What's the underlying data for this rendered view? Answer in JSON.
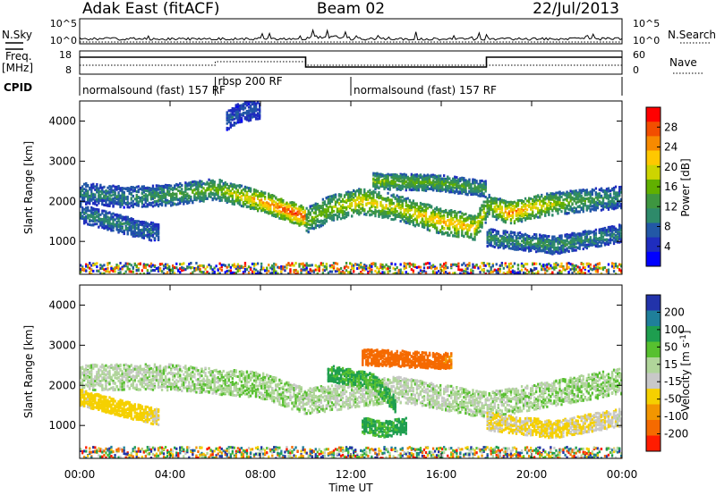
{
  "header": {
    "station": "Adak East (fitACF)",
    "beam": "Beam 02",
    "date": "22/Jul/2013"
  },
  "strip_labels": {
    "nsky": "N.Sky",
    "nsearch": "N.Search",
    "freq_line1": "Freq.",
    "freq_line2": "[MHz]",
    "nave": "Nave",
    "cpid": "CPID",
    "nsky_ticks": [
      "10^5",
      "10^0"
    ],
    "freq_ticks": [
      "18",
      "8"
    ],
    "nave_ticks": [
      "60",
      "0"
    ]
  },
  "cpid_segments": [
    {
      "label": "normalsound (fast) 157 RF",
      "start_h": 0.0,
      "end_h": 6.0
    },
    {
      "label": "rbsp 200 RF",
      "start_h": 6.0,
      "end_h": 12.0
    },
    {
      "label": "normalsound (fast) 157 RF",
      "start_h": 12.0,
      "end_h": 24.0
    }
  ],
  "freq_steps": [
    {
      "start_h": 0.0,
      "end_h": 10.0,
      "level": "high"
    },
    {
      "start_h": 10.0,
      "end_h": 18.0,
      "level": "low"
    },
    {
      "start_h": 18.0,
      "end_h": 24.0,
      "level": "high"
    }
  ],
  "nave_steps": [
    {
      "start_h": 0.0,
      "end_h": 6.0,
      "level": "low"
    },
    {
      "start_h": 6.0,
      "end_h": 10.0,
      "level": "mid"
    },
    {
      "start_h": 10.0,
      "end_h": 24.0,
      "level": "low"
    }
  ],
  "power_colorbar": {
    "label": "Power [dB]",
    "ticks": [
      "28",
      "24",
      "20",
      "16",
      "12",
      "8",
      "4"
    ],
    "colors": [
      "#ff0000",
      "#f24e00",
      "#f78a00",
      "#ffc800",
      "#cdd400",
      "#61b000",
      "#3e9640",
      "#2e8a6a",
      "#2258a6",
      "#1f2dbe",
      "#0000ff"
    ]
  },
  "velocity_colorbar": {
    "label": "Velocity [m s^-1]",
    "ticks": [
      "200",
      "100",
      "50",
      "15",
      "-15",
      "-50",
      "-100",
      "-200"
    ],
    "colors": [
      "#2233aa",
      "#1f7f9a",
      "#1e9e4f",
      "#57c02f",
      "#b0d59a",
      "#c8c8c8",
      "#f5d000",
      "#f29600",
      "#f56a00",
      "#ff1c00"
    ]
  },
  "chart_data": {
    "type": "heatmap",
    "title": "Adak East (fitACF)  Beam 02  22/Jul/2013",
    "xlabel": "Time UT",
    "x_ticks": [
      "00:00",
      "04:00",
      "08:00",
      "12:00",
      "16:00",
      "20:00",
      "00:00"
    ],
    "xlim_hours": [
      0,
      24
    ],
    "panels": [
      {
        "name": "power",
        "ylabel": "Slant Range [km]",
        "ylim": [
          180,
          4500
        ],
        "y_ticks": [
          1000,
          2000,
          3000,
          4000
        ],
        "bands": [
          {
            "t": [
              0.0,
              2.0,
              4.0,
              6.0,
              8.0,
              9.5,
              10.0
            ],
            "range": [
              2200,
              2100,
              2150,
              2300,
              2000,
              1700,
              1600
            ],
            "width": 260,
            "intensity": [
              0.3,
              0.3,
              0.4,
              0.5,
              0.8,
              0.95,
              0.9
            ]
          },
          {
            "t": [
              10.0,
              11.0,
              12.5,
              14.0,
              16.0,
              17.5,
              18.0
            ],
            "range": [
              1500,
              1800,
              2000,
              1850,
              1500,
              1350,
              1800
            ],
            "width": 320,
            "intensity": [
              0.5,
              0.55,
              0.7,
              0.6,
              0.75,
              0.7,
              0.6
            ]
          },
          {
            "t": [
              18.0,
              19.0,
              20.5,
              22.0,
              24.0
            ],
            "range": [
              1900,
              1700,
              1900,
              2000,
              2100
            ],
            "width": 280,
            "intensity": [
              0.5,
              0.85,
              0.65,
              0.45,
              0.3
            ]
          },
          {
            "t": [
              0.0,
              2.0,
              3.5
            ],
            "range": [
              1700,
              1400,
              1200
            ],
            "width": 220,
            "intensity": [
              0.3,
              0.3,
              0.25
            ]
          },
          {
            "t": [
              13.0,
              16.0,
              18.0
            ],
            "range": [
              2500,
              2450,
              2300
            ],
            "width": 200,
            "intensity": [
              0.55,
              0.45,
              0.4
            ]
          },
          {
            "t": [
              18.0,
              21.0,
              24.0
            ],
            "range": [
              1100,
              900,
              1200
            ],
            "width": 220,
            "intensity": [
              0.35,
              0.35,
              0.3
            ]
          },
          {
            "t": [
              6.5,
              7.0,
              8.0
            ],
            "range": [
              4000,
              4200,
              4300
            ],
            "width": 240,
            "intensity": [
              0.2,
              0.2,
              0.2
            ]
          }
        ]
      },
      {
        "name": "velocity",
        "ylabel": "Slant Range [km]",
        "ylim": [
          180,
          4500
        ],
        "y_ticks": [
          1000,
          2000,
          3000,
          4000
        ],
        "bands": [
          {
            "t": [
              0.0,
              4.0,
              8.0,
              10.0,
              14.0,
              18.0,
              24.0
            ],
            "range": [
              2200,
              2200,
              2000,
              1600,
              1900,
              1500,
              2100
            ],
            "width": 320,
            "velocity": [
              -5,
              0,
              5,
              0,
              -5,
              0,
              5
            ]
          },
          {
            "t": [
              12.5,
              14.5,
              16.5
            ],
            "range": [
              2700,
              2650,
              2600
            ],
            "width": 200,
            "velocity": [
              -180,
              -200,
              -150
            ]
          },
          {
            "t": [
              11.0,
              13.0,
              14.0
            ],
            "range": [
              2300,
              2100,
              1500
            ],
            "width": 200,
            "velocity": [
              40,
              30,
              45
            ]
          },
          {
            "t": [
              12.5,
              13.5,
              14.5
            ],
            "range": [
              1000,
              900,
              1000
            ],
            "width": 200,
            "velocity": [
              40,
              30,
              50
            ]
          },
          {
            "t": [
              18.0,
              21.0,
              24.0
            ],
            "range": [
              1100,
              900,
              1200
            ],
            "width": 220,
            "velocity": [
              -30,
              -40,
              -20
            ]
          },
          {
            "t": [
              0.0,
              2.0,
              3.5
            ],
            "range": [
              1700,
              1400,
              1200
            ],
            "width": 200,
            "velocity": [
              -40,
              -60,
              -30
            ]
          }
        ]
      }
    ]
  }
}
